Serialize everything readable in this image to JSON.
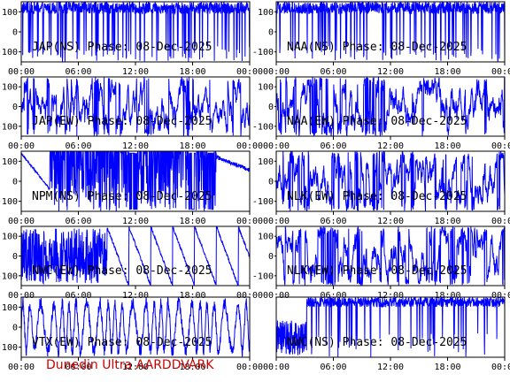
{
  "footer": "Dunedin Ultra AARDDVARK",
  "colors": {
    "trace": "#0000ff",
    "axis": "#000000",
    "footer": "#cc0000",
    "background": "#ffffff"
  },
  "chart_data": [
    {
      "type": "line",
      "title": "JAP(NS) Phase: 08-Dec-2025",
      "x_ticks": [
        "00:00",
        "06:00",
        "12:00",
        "18:00",
        "00:00"
      ],
      "y_ticks": [
        "100",
        "0",
        "-100"
      ],
      "y_side": "left",
      "ylim": [
        -150,
        150
      ],
      "xlim_hours": [
        0,
        24
      ],
      "pattern": "dense"
    },
    {
      "type": "line",
      "title": "NAA(NS) Phase: 08-Dec-2025",
      "x_ticks": [
        "00:00",
        "06:00",
        "12:00",
        "18:00",
        "00:00"
      ],
      "y_ticks": [
        "100",
        "0",
        "-100"
      ],
      "y_side": "right",
      "ylim": [
        -150,
        150
      ],
      "xlim_hours": [
        0,
        24
      ],
      "pattern": "dense"
    },
    {
      "type": "line",
      "title": "JAP(EW) Phase: 08-Dec-2025",
      "x_ticks": [
        "00:00",
        "06:00",
        "12:00",
        "18:00",
        "00:00"
      ],
      "y_ticks": [
        "100",
        "0",
        "-100"
      ],
      "y_side": "left",
      "ylim": [
        -150,
        150
      ],
      "xlim_hours": [
        0,
        24
      ],
      "pattern": "noisy"
    },
    {
      "type": "line",
      "title": "NAA(EW) Phase: 08-Dec-2025",
      "x_ticks": [
        "00:00",
        "06:00",
        "12:00",
        "18:00",
        "00:00"
      ],
      "y_ticks": [
        "100",
        "0",
        "-100"
      ],
      "y_side": "right",
      "ylim": [
        -150,
        150
      ],
      "xlim_hours": [
        0,
        24
      ],
      "pattern": "noisy"
    },
    {
      "type": "line",
      "title": "NPM(NS) Phase: 08-Dec-2025",
      "x_ticks": [
        "00:00",
        "06:00",
        "12:00",
        "18:00",
        "00:00"
      ],
      "y_ticks": [
        "100",
        "0",
        "-100"
      ],
      "y_side": "left",
      "ylim": [
        -150,
        150
      ],
      "xlim_hours": [
        0,
        24
      ],
      "pattern": "npm"
    },
    {
      "type": "line",
      "title": "NLK(EW) Phase: 08-Dec-2025",
      "x_ticks": [
        "00:00",
        "06:00",
        "12:00",
        "18:00",
        "00:00"
      ],
      "y_ticks": [
        "100",
        "0",
        "-100"
      ],
      "y_side": "right",
      "ylim": [
        -150,
        150
      ],
      "xlim_hours": [
        0,
        24
      ],
      "pattern": "noisy"
    },
    {
      "type": "line",
      "title": "NWC(EW) Phase: 08-Dec-2025",
      "x_ticks": [
        "00:00",
        "06:00",
        "12:00",
        "18:00",
        "00:00"
      ],
      "y_ticks": [
        "100",
        "0",
        "-100"
      ],
      "y_side": "left",
      "ylim": [
        -150,
        150
      ],
      "xlim_hours": [
        0,
        24
      ],
      "pattern": "sawtooth"
    },
    {
      "type": "line",
      "title": "NLK(EW) Phase: 08-Dec-2025",
      "x_ticks": [
        "00:00",
        "06:00",
        "12:00",
        "18:00",
        "00:00"
      ],
      "y_ticks": [
        "100",
        "0",
        "-100"
      ],
      "y_side": "right",
      "ylim": [
        -150,
        150
      ],
      "xlim_hours": [
        0,
        24
      ],
      "pattern": "noisy"
    },
    {
      "type": "line",
      "title": "VTX(EW) Phase: 08-Dec-2025",
      "x_ticks": [
        "00:00",
        "06:00",
        "12:00",
        "18:00",
        "00:00"
      ],
      "y_ticks": [
        "100",
        "0",
        "-100"
      ],
      "y_side": "left",
      "ylim": [
        -150,
        150
      ],
      "xlim_hours": [
        0,
        24
      ],
      "pattern": "wave"
    },
    {
      "type": "line",
      "title": "NWC(NS) Phase: 08-Dec-2025",
      "x_ticks": [
        "00:00",
        "06:00",
        "12:00",
        "18:00",
        "00:00"
      ],
      "y_ticks": [],
      "y_side": "right",
      "ylim": [
        -150,
        150
      ],
      "xlim_hours": [
        0,
        24
      ],
      "pattern": "dense_late"
    }
  ]
}
